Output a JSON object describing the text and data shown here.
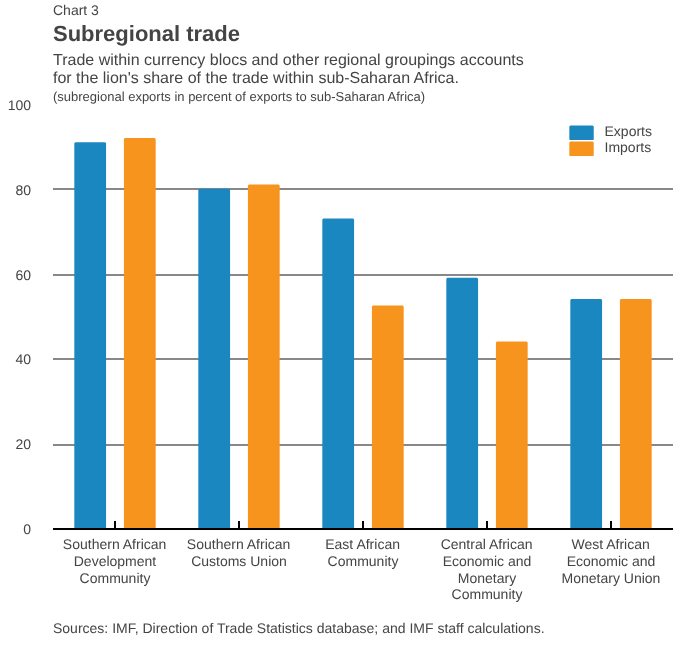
{
  "chart_data": {
    "type": "bar",
    "title": "Subregional trade",
    "subtitle": "Trade within currency blocs and other regional groupings accounts for the lion's share of the trade within sub-Saharan Africa.",
    "annotations": [
      "Chart 3",
      "(subregional exports in percent of exports to sub-Saharan Africa)",
      "Sources: IMF, Direction of Trade Statistics database; and IMF staff calculations."
    ],
    "categories": [
      "Southern African Development Community",
      "Southern African Customs Union",
      "East African Community",
      "Central African Economic and Monetary Community",
      "West African Economic and Monetary Union"
    ],
    "series": [
      {
        "name": "Exports",
        "color": "#1a87c0",
        "values": [
          91,
          80,
          73,
          59,
          54
        ]
      },
      {
        "name": "Imports",
        "color": "#f7941d",
        "values": [
          92,
          81,
          52.5,
          44,
          54
        ]
      }
    ],
    "ylim": [
      0,
      100
    ],
    "yticks": [
      0,
      20,
      40,
      60,
      80,
      100
    ],
    "grid": "y",
    "legend": "top right"
  }
}
